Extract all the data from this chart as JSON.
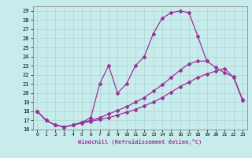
{
  "xlabel": "Windchill (Refroidissement éolien,°C)",
  "bg_color": "#c8ecec",
  "grid_color": "#b0d8d8",
  "line_color": "#993399",
  "xlim": [
    -0.5,
    23.5
  ],
  "ylim": [
    16,
    29.5
  ],
  "xticks": [
    0,
    1,
    2,
    3,
    4,
    5,
    6,
    7,
    8,
    9,
    10,
    11,
    12,
    13,
    14,
    15,
    16,
    17,
    18,
    19,
    20,
    21,
    22,
    23
  ],
  "yticks": [
    16,
    17,
    18,
    19,
    20,
    21,
    22,
    23,
    24,
    25,
    26,
    27,
    28,
    29
  ],
  "series1_x": [
    0,
    1,
    2,
    3,
    4,
    5,
    6,
    7,
    8,
    9,
    10,
    11,
    12,
    13,
    14,
    15,
    16,
    17,
    18,
    19
  ],
  "series1_y": [
    18.0,
    17.0,
    16.5,
    16.3,
    16.5,
    16.8,
    17.3,
    21.0,
    23.0,
    20.0,
    21.0,
    23.0,
    24.0,
    26.5,
    28.2,
    28.8,
    29.0,
    28.8,
    26.2,
    23.5
  ],
  "series2_x": [
    0,
    1,
    2,
    3,
    4,
    5,
    6,
    7,
    8,
    9,
    10,
    11,
    12,
    13,
    14,
    15,
    16,
    17,
    18,
    19,
    20,
    21,
    22,
    23
  ],
  "series2_y": [
    18.0,
    17.0,
    16.5,
    16.3,
    16.5,
    16.7,
    16.9,
    17.1,
    17.3,
    17.6,
    17.9,
    18.2,
    18.6,
    19.0,
    19.5,
    20.1,
    20.7,
    21.2,
    21.7,
    22.1,
    22.4,
    22.7,
    21.7,
    19.2
  ],
  "series3_x": [
    0,
    1,
    2,
    3,
    4,
    5,
    6,
    7,
    8,
    9,
    10,
    11,
    12,
    13,
    14,
    15,
    16,
    17,
    18,
    19,
    20,
    21,
    22,
    23
  ],
  "series3_y": [
    18.0,
    17.0,
    16.5,
    16.3,
    16.5,
    16.8,
    17.0,
    17.3,
    17.7,
    18.1,
    18.5,
    19.0,
    19.5,
    20.2,
    20.9,
    21.7,
    22.5,
    23.2,
    23.5,
    23.5,
    22.8,
    22.2,
    21.8,
    19.3
  ]
}
